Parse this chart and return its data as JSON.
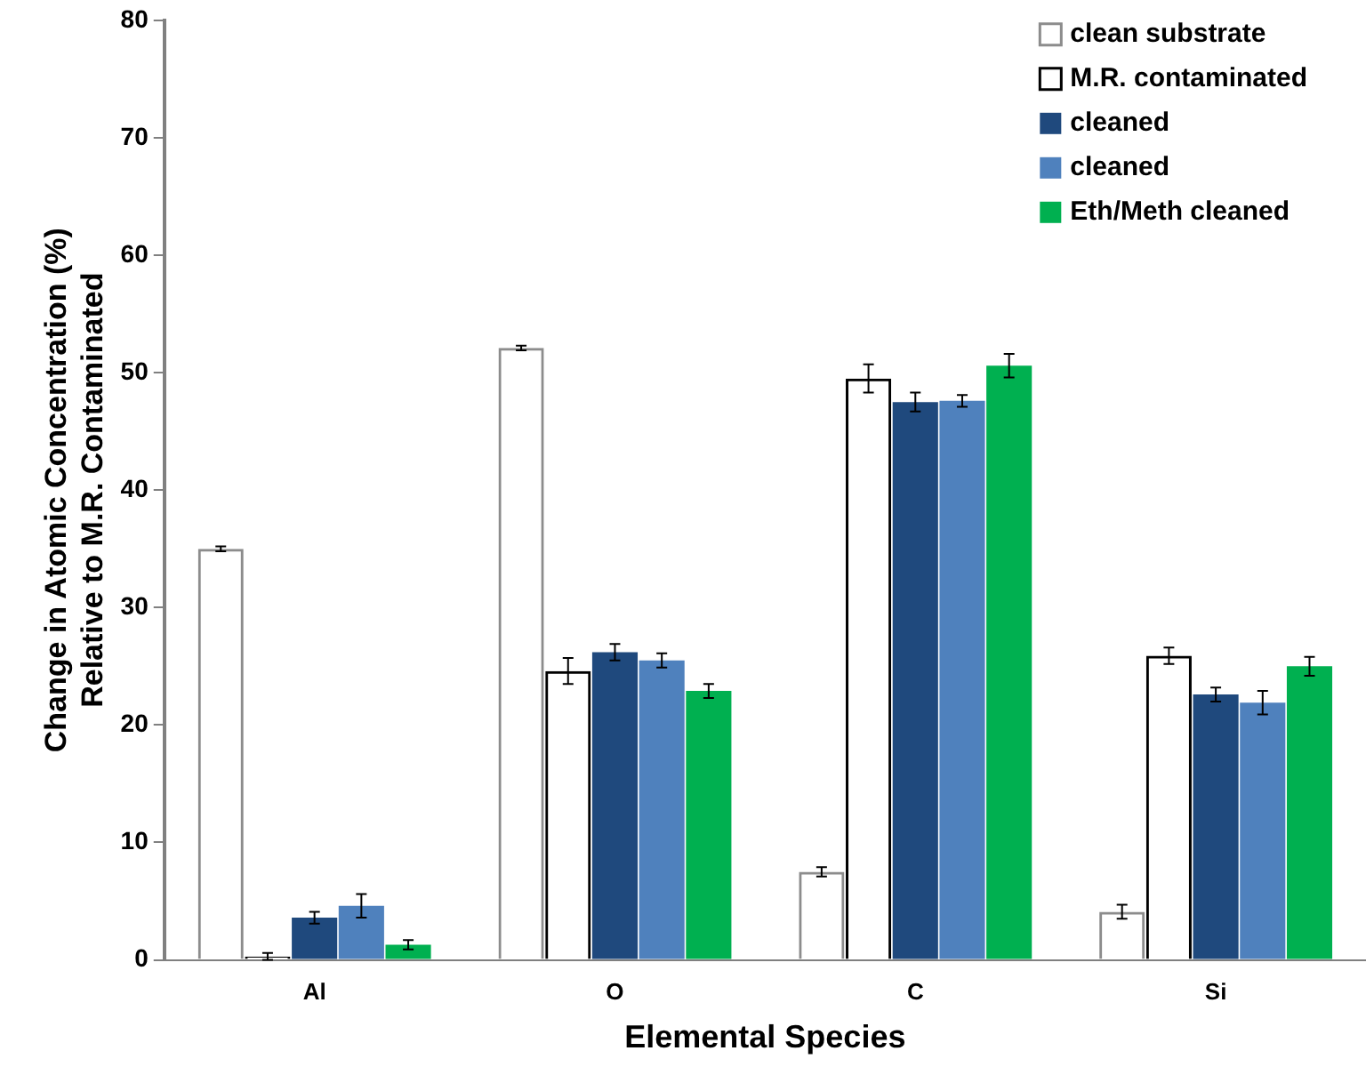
{
  "chart_data": {
    "type": "bar",
    "xlabel": "Elemental Species",
    "ylabel": "Change in Atomic Concentration (%)\nRelative to M.R. Contaminated",
    "categories": [
      "Al",
      "O",
      "C",
      "Si"
    ],
    "series": [
      {
        "name": "clean substrate",
        "color": "#8c8c8c",
        "values": [
          35.0,
          52.1,
          7.5,
          4.1
        ],
        "errors": [
          0.2,
          0.2,
          0.4,
          0.6
        ]
      },
      {
        "name": "M.R. contaminated",
        "color": "#000000",
        "values": [
          0.3,
          24.6,
          49.5,
          25.9
        ],
        "errors": [
          0.3,
          1.1,
          1.2,
          0.7
        ]
      },
      {
        "name": "cleaned",
        "color": "#1f497d",
        "values": [
          3.6,
          26.2,
          47.5,
          22.6
        ],
        "errors": [
          0.5,
          0.7,
          0.8,
          0.6
        ]
      },
      {
        "name": "cleaned",
        "color": "#4f81bd",
        "values": [
          4.6,
          25.5,
          47.6,
          21.9
        ],
        "errors": [
          1.0,
          0.6,
          0.5,
          1.0
        ]
      },
      {
        "name": "Eth/Meth cleaned",
        "color": "#00b050",
        "values": [
          1.3,
          22.9,
          50.6,
          25.0
        ],
        "errors": [
          0.4,
          0.6,
          1.0,
          0.8
        ]
      }
    ],
    "ylim": [
      0,
      80
    ],
    "yticks": [
      0,
      10,
      20,
      30,
      40,
      50,
      60,
      70,
      80
    ],
    "grid": false,
    "legend": "top right"
  }
}
